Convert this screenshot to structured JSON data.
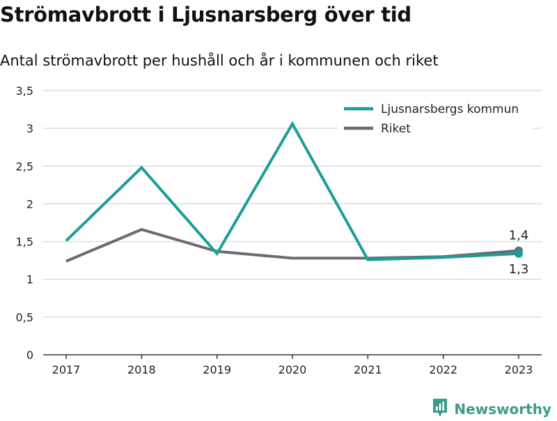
{
  "chart_data": {
    "type": "line",
    "title": "Strömavbrott i Ljusnarsberg över tid",
    "subtitle": "Antal strömavbrott per hushåll och år i kommunen och riket",
    "xlabel": "",
    "ylabel": "",
    "categories": [
      "2017",
      "2018",
      "2019",
      "2020",
      "2021",
      "2022",
      "2023"
    ],
    "ylim": [
      0,
      3.5
    ],
    "yticks": [
      {
        "value": 0,
        "label": "0"
      },
      {
        "value": 0.5,
        "label": "0,5"
      },
      {
        "value": 1,
        "label": "1"
      },
      {
        "value": 1.5,
        "label": "1,5"
      },
      {
        "value": 2,
        "label": "2"
      },
      {
        "value": 2.5,
        "label": "2,5"
      },
      {
        "value": 3,
        "label": "3"
      },
      {
        "value": 3.5,
        "label": "3,5"
      }
    ],
    "grid": true,
    "legend_position": "top-right",
    "series": [
      {
        "name": "Ljusnarsbergs kommun",
        "color": "#1a9e96",
        "values": [
          1.51,
          2.48,
          1.34,
          3.06,
          1.26,
          1.29,
          1.34
        ],
        "end_label": "1,3"
      },
      {
        "name": "Riket",
        "color": "#6c6a70",
        "values": [
          1.24,
          1.66,
          1.37,
          1.28,
          1.28,
          1.3,
          1.38
        ],
        "end_label": "1,4"
      }
    ]
  },
  "brand": {
    "name": "Newsworthy",
    "icon": "newsworthy-logo-icon",
    "color": "#3d9a8b"
  }
}
